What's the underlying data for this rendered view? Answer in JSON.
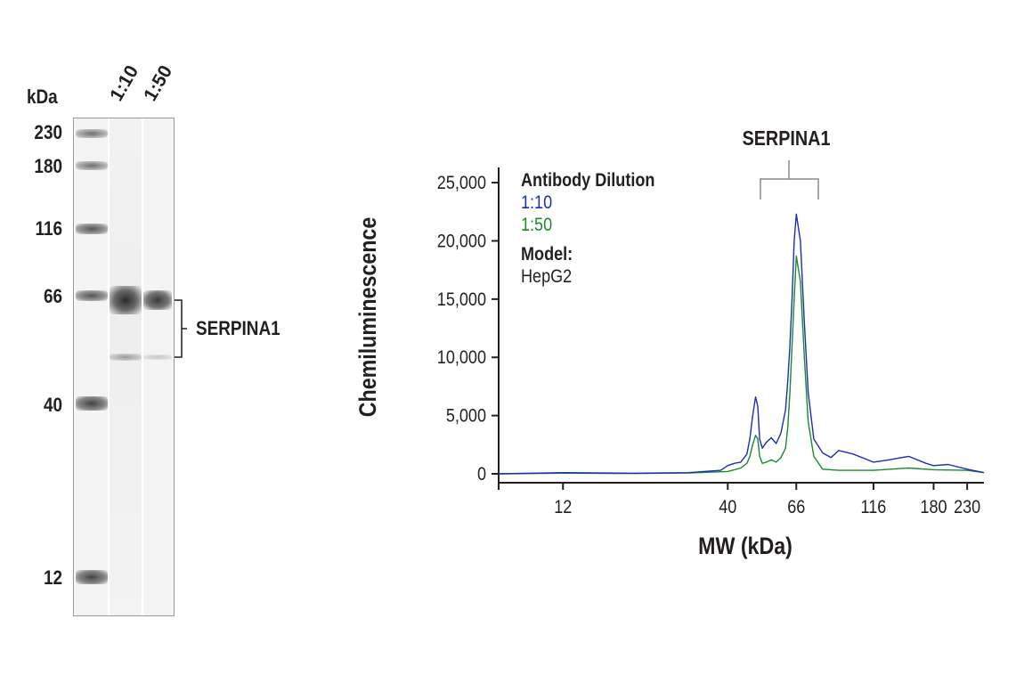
{
  "blot": {
    "kda_label": "kDa",
    "lanes": [
      "1:10",
      "1:50"
    ],
    "markers": [
      "230",
      "180",
      "116",
      "66",
      "40",
      "12"
    ],
    "target_label": "SERPINA1"
  },
  "chart": {
    "peak_label": "SERPINA1",
    "legend": {
      "title": "Antibody Dilution",
      "series": [
        "1:10",
        "1:50"
      ],
      "model_title": "Model:",
      "model_value": "HepG2"
    }
  },
  "chart_data": {
    "type": "line",
    "xlabel": "MW (kDa)",
    "ylabel": "Chemiluminescence",
    "xscale": "log",
    "x_ticks": [
      12,
      40,
      66,
      116,
      180,
      230
    ],
    "y_ticks": [
      "0",
      "5,000",
      "10,000",
      "15,000",
      "20,000",
      "25,000"
    ],
    "y_tick_values": [
      0,
      5000,
      10000,
      15000,
      20000,
      25000
    ],
    "ylim": [
      0,
      26000
    ],
    "grid": false,
    "legend_position": "top-left",
    "colors": {
      "1:10": "#1a2fb8",
      "1:50": "#1a8a2a"
    },
    "series": [
      {
        "name": "1:10",
        "x": [
          7.5,
          12,
          20,
          30,
          38,
          40,
          42,
          44,
          46,
          47,
          48,
          49,
          49.8,
          50.5,
          51.5,
          53,
          55,
          57,
          59,
          61,
          62,
          63,
          64,
          65,
          66,
          68,
          70,
          72,
          75,
          80,
          85,
          90,
          100,
          116,
          130,
          150,
          170,
          180,
          200,
          230,
          260
        ],
        "y": [
          0,
          100,
          50,
          100,
          300,
          700,
          900,
          1000,
          1700,
          3000,
          5000,
          6600,
          5800,
          3000,
          2200,
          2700,
          3100,
          2600,
          3500,
          5500,
          8000,
          11000,
          15000,
          20000,
          22300,
          20000,
          13000,
          7000,
          3000,
          1800,
          1400,
          2000,
          1700,
          1000,
          1200,
          1500,
          900,
          700,
          800,
          400,
          100
        ]
      },
      {
        "name": "1:50",
        "x": [
          7.5,
          12,
          20,
          30,
          40,
          44,
          46,
          47,
          48,
          49,
          49.8,
          50.5,
          51.5,
          53,
          55,
          57,
          59,
          61,
          62,
          63,
          64,
          65,
          66,
          68,
          70,
          72,
          75,
          80,
          90,
          116,
          150,
          180,
          230,
          260
        ],
        "y": [
          0,
          50,
          20,
          80,
          200,
          500,
          900,
          1500,
          2500,
          3300,
          3000,
          1500,
          900,
          1000,
          1200,
          1000,
          1400,
          2200,
          4000,
          7000,
          11000,
          15000,
          18700,
          16500,
          10000,
          4500,
          1500,
          400,
          300,
          300,
          500,
          350,
          300,
          100
        ]
      }
    ]
  }
}
